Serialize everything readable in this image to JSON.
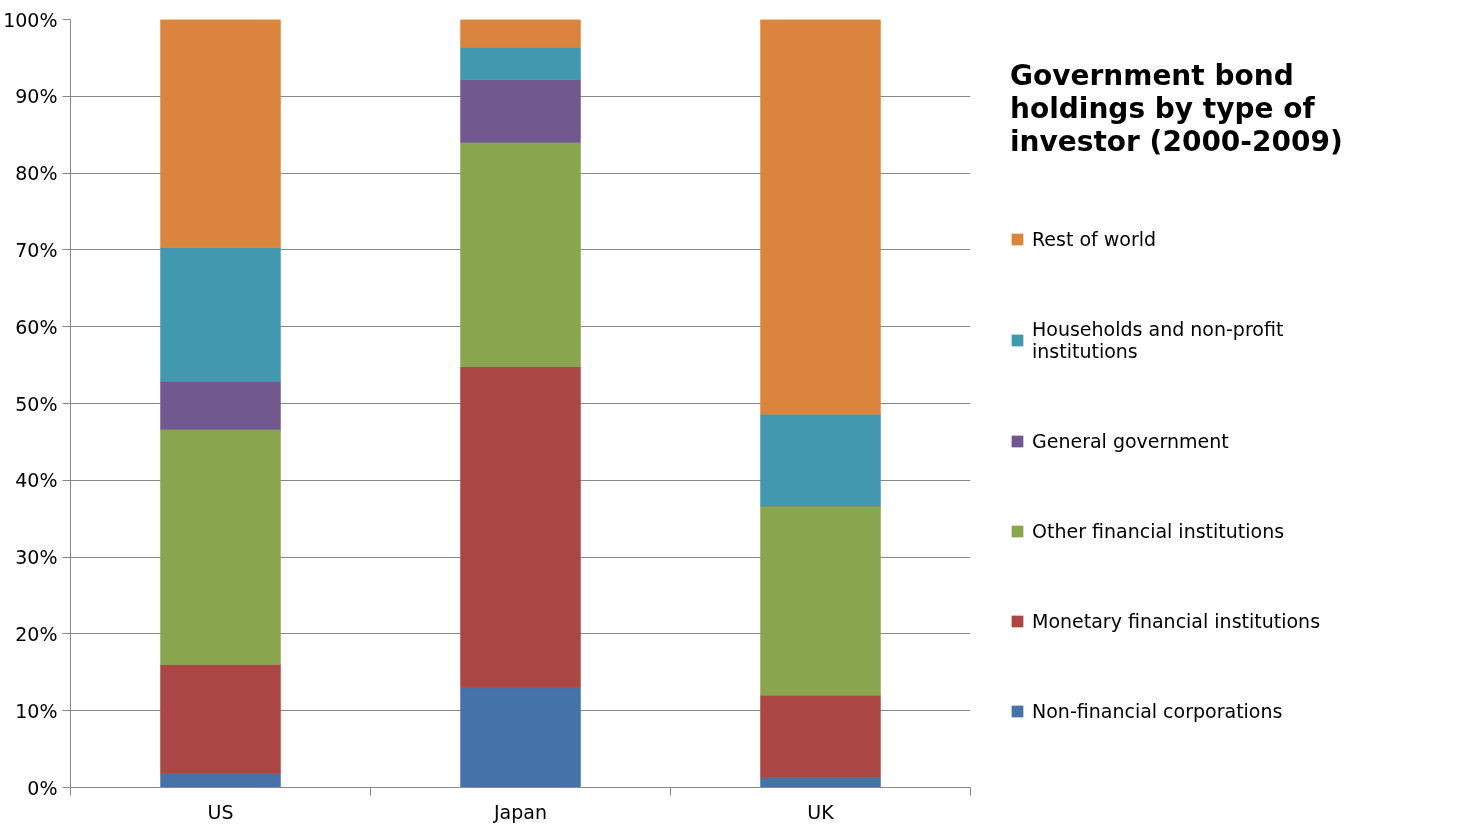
{
  "chart_data": {
    "type": "bar",
    "title": "Government bond holdings by type of investor (2000-2009)",
    "stacked": true,
    "categories": [
      "US",
      "Japan",
      "UK"
    ],
    "series": [
      {
        "name": "Non-financial corporations",
        "color": "#4572a7",
        "values": [
          1.8,
          13.0,
          1.3
        ]
      },
      {
        "name": "Monetary financial institutions",
        "color": "#aa4643",
        "values": [
          14.2,
          41.8,
          10.7
        ]
      },
      {
        "name": "Other financial institutions",
        "color": "#89a54e",
        "values": [
          30.6,
          29.2,
          24.7
        ]
      },
      {
        "name": "General government",
        "color": "#71588f",
        "values": [
          6.3,
          8.2,
          0
        ]
      },
      {
        "name": "Households and non-profit institutions",
        "color": "#4198af",
        "values": [
          17.4,
          4.2,
          11.9
        ]
      },
      {
        "name": "Rest of world",
        "color": "#db843d",
        "values": [
          29.7,
          3.6,
          51.4
        ]
      }
    ],
    "ylim": [
      0,
      100
    ],
    "yticks": [
      {
        "value": 0,
        "label": "0%"
      },
      {
        "value": 10,
        "label": "10%"
      },
      {
        "value": 20,
        "label": "20%"
      },
      {
        "value": 30,
        "label": "30%"
      },
      {
        "value": 40,
        "label": "40%"
      },
      {
        "value": 50,
        "label": "50%"
      },
      {
        "value": 60,
        "label": "60%"
      },
      {
        "value": 70,
        "label": "70%"
      },
      {
        "value": 80,
        "label": "80%"
      },
      {
        "value": 90,
        "label": "90%"
      },
      {
        "value": 100,
        "label": "100%"
      }
    ],
    "grid": "y",
    "legend": "right"
  }
}
